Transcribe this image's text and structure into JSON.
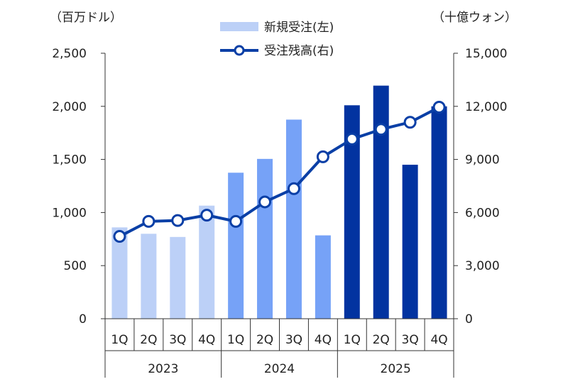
{
  "chart_data": {
    "type": "bar+line",
    "left_unit": "（百万ドル）",
    "right_unit": "（十億ウォン）",
    "categories": [
      "1Q",
      "2Q",
      "3Q",
      "4Q",
      "1Q",
      "2Q",
      "3Q",
      "4Q",
      "1Q",
      "2Q",
      "3Q",
      "4Q"
    ],
    "years": [
      "2023",
      "2024",
      "2025"
    ],
    "left_axis": {
      "ticks": [
        "0",
        "500",
        "1,000",
        "1,500",
        "2,000",
        "2,500"
      ],
      "ylim": [
        0,
        2500
      ]
    },
    "right_axis": {
      "ticks": [
        "0",
        "3,000",
        "6,000",
        "9,000",
        "12,000",
        "15,000"
      ],
      "ylim": [
        0,
        15000
      ]
    },
    "series": [
      {
        "name": "新規受注(左)",
        "type": "bar",
        "axis": "left",
        "values": [
          860,
          800,
          770,
          1065,
          1375,
          1505,
          1875,
          785,
          2010,
          2195,
          1450,
          2000
        ],
        "colors": [
          "#bcd0f7",
          "#bcd0f7",
          "#bcd0f7",
          "#bcd0f7",
          "#76a2f7",
          "#76a2f7",
          "#76a2f7",
          "#76a2f7",
          "#0233a0",
          "#0233a0",
          "#0233a0",
          "#0233a0"
        ]
      },
      {
        "name": "受注残高(右)",
        "type": "line",
        "axis": "right",
        "values": [
          4650,
          5500,
          5550,
          5850,
          5500,
          6600,
          7350,
          9150,
          10150,
          10700,
          11100,
          11950
        ],
        "color": "#0a3fa6"
      }
    ]
  }
}
